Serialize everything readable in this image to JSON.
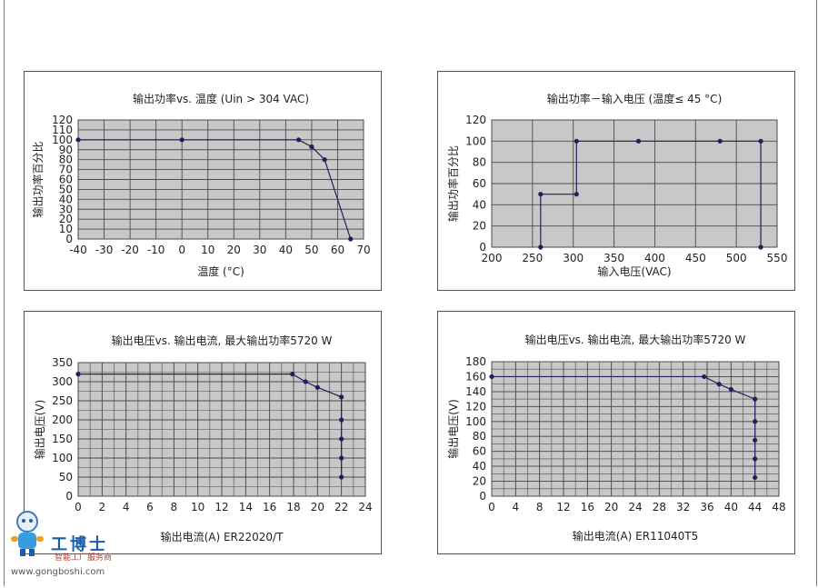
{
  "chart_data": [
    {
      "type": "line",
      "title": "输出功率vs. 温度 (Uin > 304 VAC)",
      "xlabel": "温度 (°C)",
      "ylabel": "输出功率百分比",
      "xlim": [
        -40,
        70
      ],
      "ylim": [
        0,
        120
      ],
      "x_ticks": [
        -40,
        -30,
        -20,
        -10,
        0,
        10,
        20,
        30,
        40,
        50,
        60,
        70
      ],
      "x_tick_labels": [
        "-40",
        "-30",
        "-20",
        "-10",
        "0",
        "10",
        "20",
        "30",
        "40",
        "50",
        "60",
        "70"
      ],
      "y_ticks": [
        0,
        10,
        20,
        30,
        40,
        50,
        60,
        70,
        80,
        90,
        100,
        110,
        120
      ],
      "y_tick_labels": [
        "0",
        "10",
        "20",
        "30",
        "40",
        "50",
        "60",
        "70",
        "80",
        "90",
        "100",
        "110",
        "120"
      ],
      "grid": true,
      "series": [
        {
          "x": [
            -40,
            0,
            45,
            50,
            55,
            65
          ],
          "y": [
            100,
            100,
            100,
            93,
            80,
            0
          ],
          "markers": [
            true,
            true,
            true,
            true,
            true,
            true
          ]
        }
      ]
    },
    {
      "type": "line",
      "title": "输出功率－输入电压 (温度≤ 45 °C)",
      "xlabel": "输入电压(VAC)",
      "ylabel": "输出功率百分比",
      "xlim": [
        200,
        550
      ],
      "ylim": [
        0,
        120
      ],
      "x_ticks": [
        200,
        250,
        300,
        350,
        400,
        450,
        500,
        550
      ],
      "x_tick_labels": [
        "200",
        "250",
        "300",
        "350",
        "400",
        "450",
        "500",
        "550"
      ],
      "y_ticks": [
        0,
        20,
        40,
        60,
        80,
        100,
        120
      ],
      "y_tick_labels": [
        "0",
        "20",
        "40",
        "60",
        "80",
        "100",
        "120"
      ],
      "grid": true,
      "series": [
        {
          "x": [
            260,
            260,
            304,
            304,
            380,
            480,
            530,
            530
          ],
          "y": [
            0,
            50,
            50,
            100,
            100,
            100,
            100,
            0
          ],
          "markers": [
            true,
            true,
            true,
            true,
            true,
            true,
            true,
            true
          ]
        }
      ]
    },
    {
      "type": "line",
      "title": "输出电压vs. 输出电流, 最大输出功率5720 W",
      "xlabel": "输出电流(A) ER22020/T",
      "ylabel": "输出电压(V)",
      "xlim": [
        0,
        24
      ],
      "ylim": [
        0,
        350
      ],
      "x_ticks": [
        0,
        2,
        4,
        6,
        8,
        10,
        12,
        14,
        16,
        18,
        20,
        22,
        24
      ],
      "x_tick_labels": [
        "0",
        "2",
        "4",
        "6",
        "8",
        "10",
        "12",
        "14",
        "16",
        "18",
        "20",
        "22",
        "24"
      ],
      "y_ticks": [
        0,
        50,
        100,
        150,
        200,
        250,
        300,
        350
      ],
      "y_tick_labels": [
        "0",
        "50",
        "100",
        "150",
        "200",
        "250",
        "300",
        "350"
      ],
      "x_minor": 1,
      "y_minor": 25,
      "grid": true,
      "series": [
        {
          "x": [
            0,
            17.9,
            19,
            20,
            22,
            22,
            22,
            22,
            22
          ],
          "y": [
            320,
            320,
            300,
            285,
            260,
            200,
            150,
            100,
            50
          ],
          "markers": [
            true,
            true,
            true,
            true,
            true,
            true,
            true,
            true,
            true
          ]
        }
      ]
    },
    {
      "type": "line",
      "title": "输出电压vs. 输出电流, 最大输出功率5720 W",
      "xlabel": "输出电流(A) ER11040T5",
      "ylabel": "输出电压(V)",
      "xlim": [
        0,
        48
      ],
      "ylim": [
        0,
        180
      ],
      "x_ticks": [
        0,
        4,
        8,
        12,
        16,
        20,
        24,
        28,
        32,
        36,
        40,
        44,
        48
      ],
      "x_tick_labels": [
        "0",
        "4",
        "8",
        "12",
        "16",
        "20",
        "24",
        "28",
        "32",
        "36",
        "40",
        "44",
        "48"
      ],
      "y_ticks": [
        0,
        20,
        40,
        60,
        80,
        100,
        120,
        140,
        160,
        180
      ],
      "y_tick_labels": [
        "0",
        "20",
        "40",
        "60",
        "80",
        "100",
        "120",
        "140",
        "160",
        "180"
      ],
      "x_minor": 2,
      "y_minor": 10,
      "grid": true,
      "series": [
        {
          "x": [
            0,
            35.5,
            38,
            40,
            44,
            44,
            44,
            44,
            44
          ],
          "y": [
            160,
            160,
            150,
            143,
            130,
            100,
            75,
            50,
            25
          ],
          "markers": [
            true,
            true,
            true,
            true,
            true,
            true,
            true,
            true,
            true
          ]
        }
      ]
    }
  ],
  "logo": {
    "title": "工博士",
    "subtitle": "智能工厂服务商",
    "url": "www.gongboshi.com"
  },
  "colors": {
    "plot_bg": "#c8c8c8",
    "grid": "#4a4a4a",
    "line": "#1f1f5c",
    "marker": "#1f1f5c"
  }
}
